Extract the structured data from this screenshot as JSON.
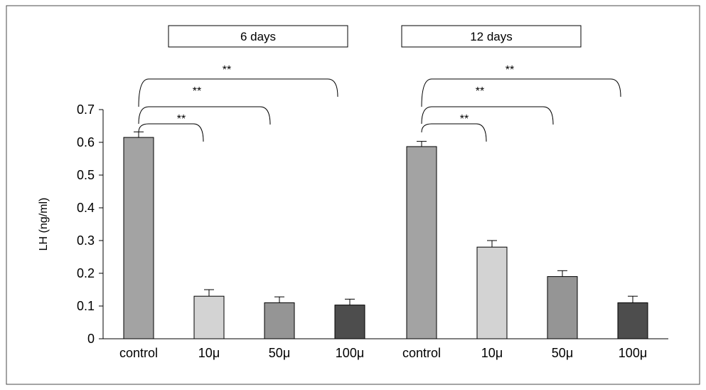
{
  "chart_data": {
    "type": "bar",
    "ylabel": "LH (ng/ml)",
    "ylim": [
      0,
      0.7
    ],
    "yticks": [
      "0",
      "0.1",
      "0.2",
      "0.3",
      "0.4",
      "0.5",
      "0.6",
      "0.7"
    ],
    "grid": false,
    "groups": [
      {
        "label": "6 days",
        "categories": [
          "control",
          "10μ",
          "50μ",
          "100μ"
        ],
        "values": [
          0.615,
          0.13,
          0.11,
          0.103
        ],
        "errors": [
          0.017,
          0.02,
          0.018,
          0.018
        ],
        "colors": [
          "#a3a3a3",
          "#d3d3d3",
          "#959595",
          "#4d4d4d"
        ]
      },
      {
        "label": "12 days",
        "categories": [
          "control",
          "10μ",
          "50μ",
          "100μ"
        ],
        "values": [
          0.587,
          0.28,
          0.19,
          0.11
        ],
        "errors": [
          0.016,
          0.02,
          0.018,
          0.02
        ],
        "colors": [
          "#a3a3a3",
          "#d3d3d3",
          "#959595",
          "#4d4d4d"
        ]
      }
    ],
    "significance": [
      {
        "group": 0,
        "to_bar": 1,
        "label": "**"
      },
      {
        "group": 0,
        "to_bar": 2,
        "label": "**"
      },
      {
        "group": 0,
        "to_bar": 3,
        "label": "**"
      },
      {
        "group": 1,
        "to_bar": 1,
        "label": "**"
      },
      {
        "group": 1,
        "to_bar": 2,
        "label": "**"
      },
      {
        "group": 1,
        "to_bar": 3,
        "label": "**"
      }
    ]
  }
}
